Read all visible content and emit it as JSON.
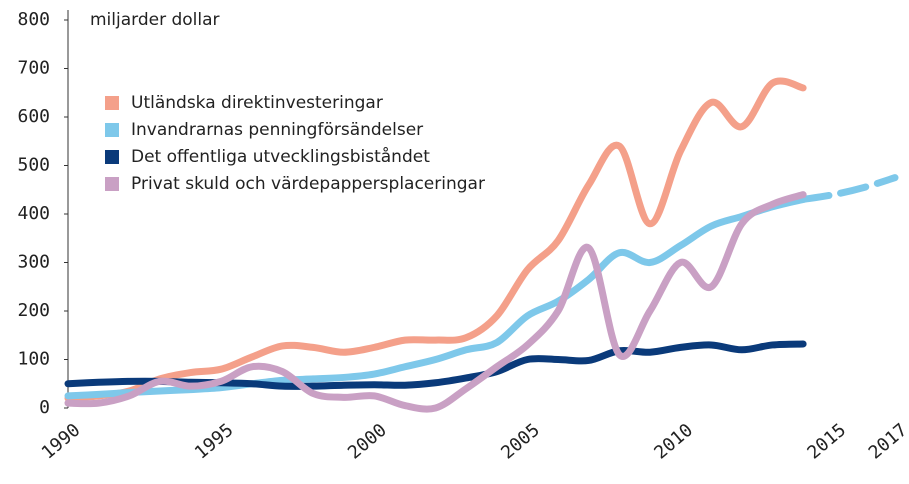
{
  "chart_data": {
    "type": "line",
    "y_label": "miljarder dollar",
    "x": [
      1990,
      1991,
      1992,
      1993,
      1994,
      1995,
      1996,
      1997,
      1998,
      1999,
      2000,
      2001,
      2002,
      2003,
      2004,
      2005,
      2006,
      2007,
      2008,
      2009,
      2010,
      2011,
      2012,
      2013,
      2014
    ],
    "series": [
      {
        "name": "Utländska direktinvesteringar",
        "color": "#f4a08a",
        "values": [
          20,
          25,
          35,
          60,
          73,
          80,
          105,
          128,
          125,
          115,
          125,
          140,
          140,
          145,
          190,
          285,
          345,
          460,
          540,
          380,
          530,
          630,
          580,
          670,
          660
        ]
      },
      {
        "name": "Invandrarnas penningförsändelser",
        "color": "#7ec8ea",
        "values": [
          25,
          28,
          32,
          35,
          38,
          42,
          50,
          57,
          60,
          63,
          70,
          85,
          100,
          120,
          135,
          190,
          220,
          265,
          320,
          300,
          335,
          375,
          395,
          415,
          430
        ],
        "forecast_x": [
          2014,
          2015,
          2016,
          2017
        ],
        "forecast_values": [
          430,
          440,
          455,
          475
        ]
      },
      {
        "name": "Det offentliga utvecklingsbiståndet",
        "color": "#0a3a7a",
        "values": [
          50,
          53,
          55,
          55,
          53,
          52,
          50,
          45,
          45,
          47,
          48,
          47,
          52,
          62,
          75,
          100,
          100,
          98,
          118,
          115,
          125,
          130,
          120,
          130,
          132
        ]
      },
      {
        "name": "Privat skuld och värdepappersplaceringar",
        "color": "#c9a0c4",
        "values": [
          10,
          10,
          25,
          55,
          45,
          55,
          85,
          75,
          30,
          22,
          25,
          5,
          0,
          40,
          85,
          130,
          200,
          330,
          110,
          200,
          300,
          250,
          380,
          420,
          440
        ]
      }
    ],
    "xlim": [
      1990,
      2017
    ],
    "xticks": [
      1990,
      1995,
      2000,
      2005,
      2010,
      2015,
      2017
    ],
    "ylim": [
      0,
      800
    ],
    "yticks": [
      0,
      100,
      200,
      300,
      400,
      500,
      600,
      700,
      800
    ],
    "legend": "upper left"
  }
}
